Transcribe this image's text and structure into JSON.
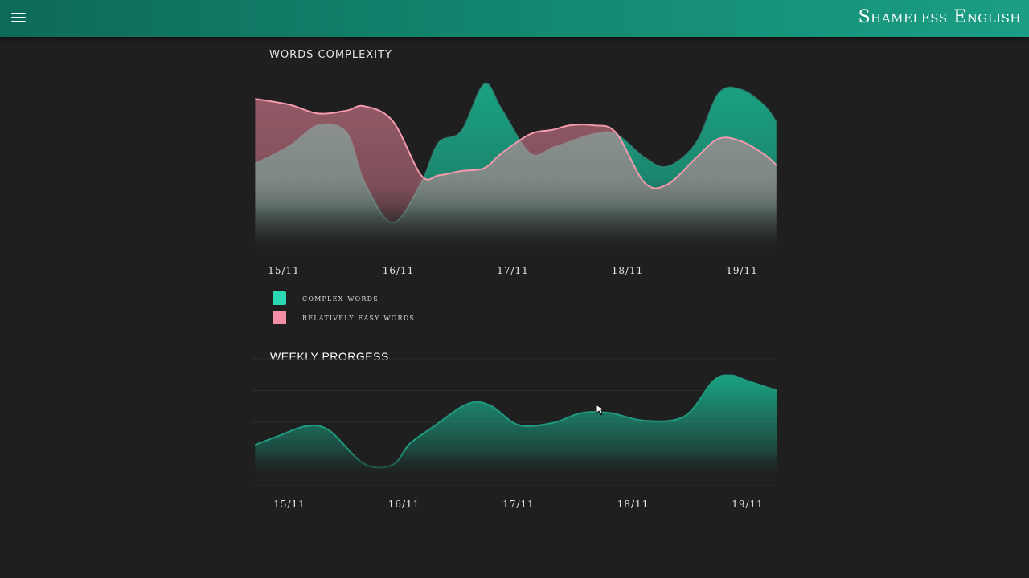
{
  "header": {
    "title": "Shameless English",
    "menu_icon": "hamburger-menu-icon"
  },
  "colors": {
    "header_start": "#0d6a58",
    "header_end": "#1b9e84",
    "complex": "#1aa988",
    "easy": "#f28aa0",
    "background": "#1f1f1f"
  },
  "words_complexity": {
    "title": "WORDS COMPLEXITY",
    "legend": [
      {
        "label": "complex words",
        "color": "#2ad8b4"
      },
      {
        "label": "relatively easy words",
        "color": "#f48ea4"
      }
    ]
  },
  "weekly_progress": {
    "title": "WEEKLY PRORGESS"
  },
  "chart_data": [
    {
      "type": "area",
      "title": "WORDS COMPLEXITY",
      "categories": [
        "15/11",
        "16/11",
        "17/11",
        "18/11",
        "19/11"
      ],
      "x": [
        -0.25,
        0.05,
        0.3,
        0.55,
        0.7,
        0.95,
        1.2,
        1.35,
        1.55,
        1.75,
        1.9,
        2.15,
        2.35,
        2.5,
        2.7,
        2.9,
        3.15,
        3.35,
        3.6,
        3.8,
        4.0,
        4.2,
        4.3
      ],
      "series": [
        {
          "name": "complex words",
          "values": [
            0.48,
            0.6,
            0.74,
            0.69,
            0.36,
            0.08,
            0.35,
            0.62,
            0.7,
            1.02,
            0.85,
            0.55,
            0.59,
            0.63,
            0.68,
            0.68,
            0.52,
            0.46,
            0.62,
            0.96,
            0.98,
            0.87,
            0.76
          ]
        },
        {
          "name": "relatively easy words",
          "values": [
            0.92,
            0.88,
            0.82,
            0.84,
            0.87,
            0.77,
            0.4,
            0.4,
            0.43,
            0.45,
            0.55,
            0.68,
            0.71,
            0.74,
            0.74,
            0.69,
            0.35,
            0.34,
            0.52,
            0.65,
            0.63,
            0.54,
            0.47
          ]
        }
      ],
      "ylim": [
        0,
        1.1
      ],
      "grid": false,
      "legend_position": "bottom-left"
    },
    {
      "type": "area",
      "title": "WEEKLY PRORGESS",
      "categories": [
        "15/11",
        "16/11",
        "17/11",
        "18/11",
        "19/11"
      ],
      "x": [
        -0.3,
        -0.1,
        0.15,
        0.35,
        0.65,
        0.9,
        1.05,
        1.25,
        1.55,
        1.75,
        2.0,
        2.3,
        2.55,
        2.8,
        3.1,
        3.45,
        3.7,
        3.85,
        4.0,
        4.35
      ],
      "series": [
        {
          "name": "",
          "values": [
            0.42,
            0.5,
            0.59,
            0.55,
            0.25,
            0.24,
            0.43,
            0.58,
            0.79,
            0.78,
            0.6,
            0.62,
            0.71,
            0.71,
            0.64,
            0.68,
            1.0,
            1.05,
            1.0,
            0.88
          ]
        }
      ],
      "ylim": [
        0,
        1.2
      ],
      "grid": true,
      "legend_position": "none"
    }
  ]
}
